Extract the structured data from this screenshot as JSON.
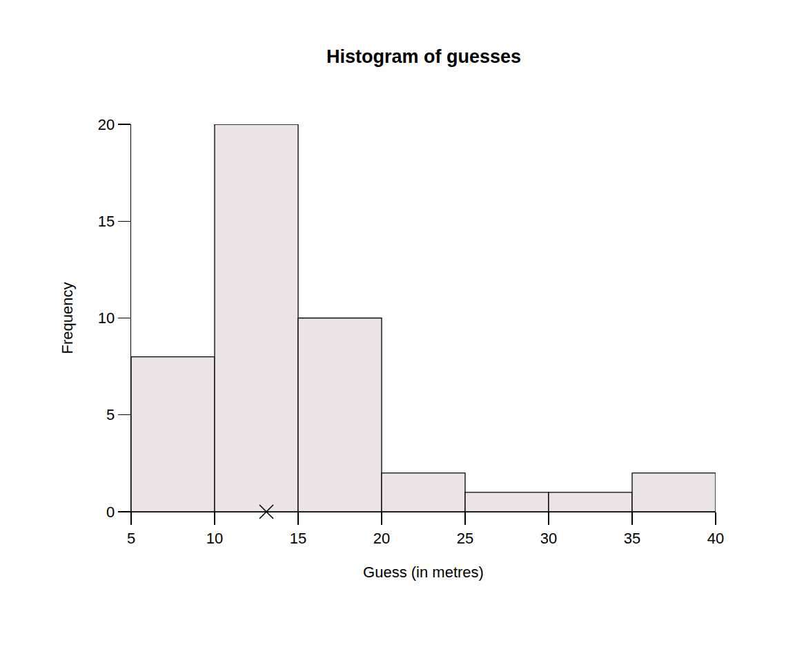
{
  "chart_data": {
    "type": "histogram",
    "title": "Histogram of guesses",
    "x_label": "Guess (in metres)",
    "y_label": "Frequency",
    "bins": [
      5,
      10,
      15,
      20,
      25,
      30,
      35,
      40
    ],
    "values": [
      8,
      20,
      10,
      2,
      1,
      1,
      2
    ],
    "color": "#ece4e4",
    "points": {
      "x": [
        13.1
      ],
      "y": [
        0
      ],
      "marker": "x"
    },
    "xlim": [
      5,
      40
    ],
    "xticks": [
      5,
      10,
      15,
      20,
      25,
      30,
      35,
      40
    ],
    "ylim": [
      0,
      20
    ],
    "yticks": [
      0,
      5,
      10,
      15,
      20
    ],
    "grid": false
  }
}
